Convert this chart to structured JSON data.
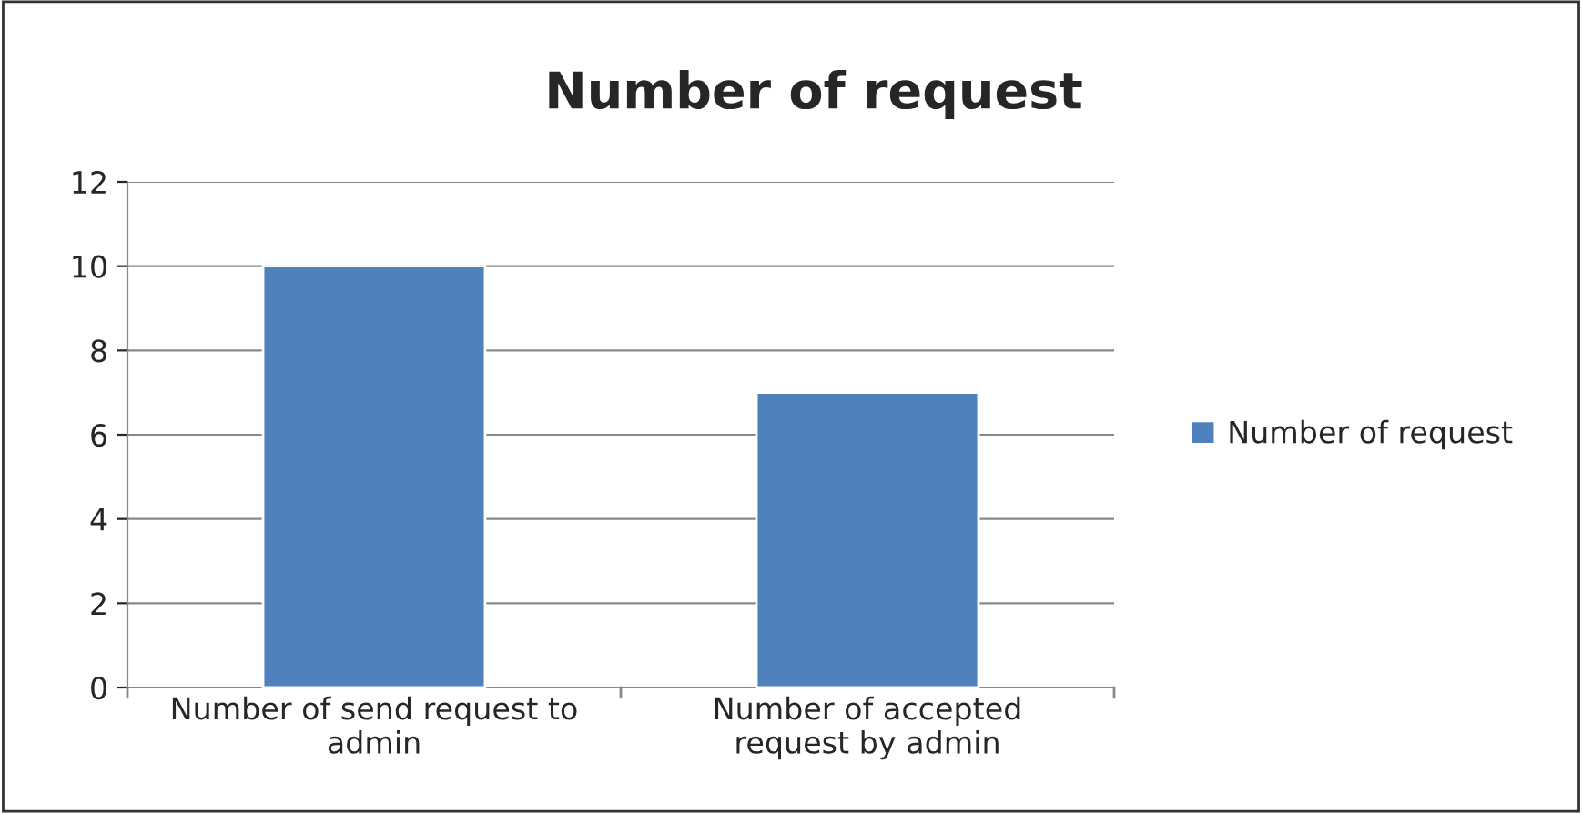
{
  "chart_data": {
    "type": "bar",
    "title": "Number of request",
    "categories": [
      "Number of send request to\nadmin",
      "Number of accepted\nrequest by admin"
    ],
    "series": [
      {
        "name": "Number of request",
        "color": "#4f81bd",
        "values": [
          10,
          7
        ]
      }
    ],
    "ylim": [
      0,
      12
    ],
    "yticks": [
      0,
      2,
      4,
      6,
      8,
      10,
      12
    ],
    "grid": "y",
    "legend": "right"
  }
}
